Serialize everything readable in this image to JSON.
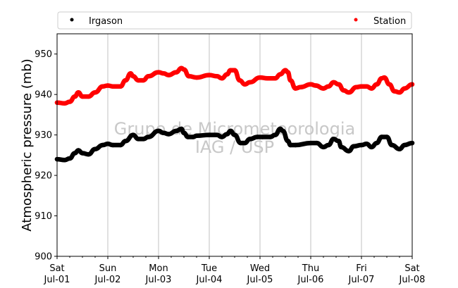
{
  "chart_data": {
    "type": "line",
    "title": "",
    "xlabel": "",
    "ylabel": "Atmospheric pressure (mb)",
    "ylim": [
      900,
      955
    ],
    "yticks": [
      900,
      910,
      920,
      930,
      940,
      950
    ],
    "x_range_days": [
      0,
      7
    ],
    "xticks": [
      {
        "day": 0,
        "weekday": "Sat",
        "date": "Jul-01"
      },
      {
        "day": 1,
        "weekday": "Sun",
        "date": "Jul-02"
      },
      {
        "day": 2,
        "weekday": "Mon",
        "date": "Jul-03"
      },
      {
        "day": 3,
        "weekday": "Tue",
        "date": "Jul-04"
      },
      {
        "day": 4,
        "weekday": "Wed",
        "date": "Jul-05"
      },
      {
        "day": 5,
        "weekday": "Thu",
        "date": "Jul-06"
      },
      {
        "day": 6,
        "weekday": "Fri",
        "date": "Jul-07"
      },
      {
        "day": 7,
        "weekday": "Sat",
        "date": "Jul-08"
      }
    ],
    "grid": "vertical",
    "legend_position": "top",
    "watermark": [
      "Grupo de Micrometeorologia",
      "IAG / USP"
    ],
    "series": [
      {
        "name": "Irgason",
        "color": "#000000",
        "x": [
          0.0,
          0.15,
          0.25,
          0.35,
          0.42,
          0.5,
          0.62,
          0.75,
          0.9,
          1.0,
          1.1,
          1.25,
          1.35,
          1.5,
          1.6,
          1.7,
          1.8,
          2.0,
          2.1,
          2.2,
          2.35,
          2.45,
          2.5,
          2.58,
          2.68,
          2.75,
          3.0,
          3.15,
          3.25,
          3.35,
          3.42,
          3.5,
          3.62,
          3.7,
          3.8,
          3.95,
          4.05,
          4.2,
          4.3,
          4.4,
          4.45,
          4.55,
          4.6,
          4.7,
          5.0,
          5.12,
          5.25,
          5.35,
          5.45,
          5.55,
          5.6,
          5.75,
          5.85,
          6.0,
          6.1,
          6.2,
          6.3,
          6.4,
          6.5,
          6.6,
          6.75,
          6.85,
          7.0
        ],
        "values": [
          924.0,
          923.8,
          924.2,
          925.5,
          926.2,
          925.5,
          925.2,
          926.5,
          927.5,
          927.8,
          927.5,
          927.5,
          928.5,
          930.0,
          929.0,
          929.0,
          929.5,
          931.0,
          930.5,
          930.2,
          931.0,
          931.5,
          930.5,
          929.5,
          929.5,
          929.8,
          930.0,
          930.0,
          929.5,
          930.2,
          931.0,
          930.0,
          928.0,
          928.0,
          929.0,
          929.5,
          929.5,
          929.5,
          930.0,
          931.5,
          931.0,
          928.5,
          927.5,
          927.5,
          928.0,
          928.0,
          927.0,
          927.5,
          929.0,
          928.5,
          927.0,
          926.0,
          927.2,
          927.5,
          927.8,
          927.0,
          928.0,
          929.5,
          929.5,
          927.5,
          926.5,
          927.5,
          928.0
        ]
      },
      {
        "name": "Station",
        "color": "#ff0000",
        "x": [
          0.0,
          0.15,
          0.25,
          0.35,
          0.42,
          0.5,
          0.62,
          0.75,
          0.9,
          1.0,
          1.1,
          1.25,
          1.35,
          1.45,
          1.5,
          1.6,
          1.7,
          1.8,
          2.0,
          2.1,
          2.2,
          2.35,
          2.45,
          2.5,
          2.6,
          2.75,
          3.0,
          3.15,
          3.25,
          3.35,
          3.42,
          3.5,
          3.6,
          3.7,
          3.8,
          4.0,
          4.15,
          4.3,
          4.4,
          4.5,
          4.55,
          4.6,
          4.7,
          4.8,
          5.0,
          5.1,
          5.25,
          5.35,
          5.45,
          5.55,
          5.65,
          5.75,
          5.9,
          6.0,
          6.1,
          6.2,
          6.3,
          6.4,
          6.45,
          6.55,
          6.65,
          6.75,
          6.85,
          7.0
        ],
        "values": [
          938.0,
          937.8,
          938.2,
          939.5,
          940.5,
          939.5,
          939.5,
          940.5,
          942.0,
          942.2,
          942.0,
          942.0,
          943.5,
          945.2,
          944.5,
          943.5,
          943.5,
          944.5,
          945.5,
          945.2,
          944.8,
          945.5,
          946.5,
          946.2,
          944.5,
          944.2,
          944.8,
          944.5,
          944.0,
          945.0,
          946.0,
          946.0,
          943.5,
          942.5,
          943.0,
          944.2,
          944.0,
          944.0,
          945.0,
          946.0,
          945.5,
          943.5,
          941.5,
          941.8,
          942.5,
          942.2,
          941.5,
          942.0,
          943.0,
          942.5,
          941.0,
          940.5,
          941.8,
          942.0,
          942.0,
          941.5,
          942.5,
          944.0,
          944.2,
          942.5,
          940.8,
          940.5,
          941.5,
          942.5
        ]
      }
    ]
  }
}
